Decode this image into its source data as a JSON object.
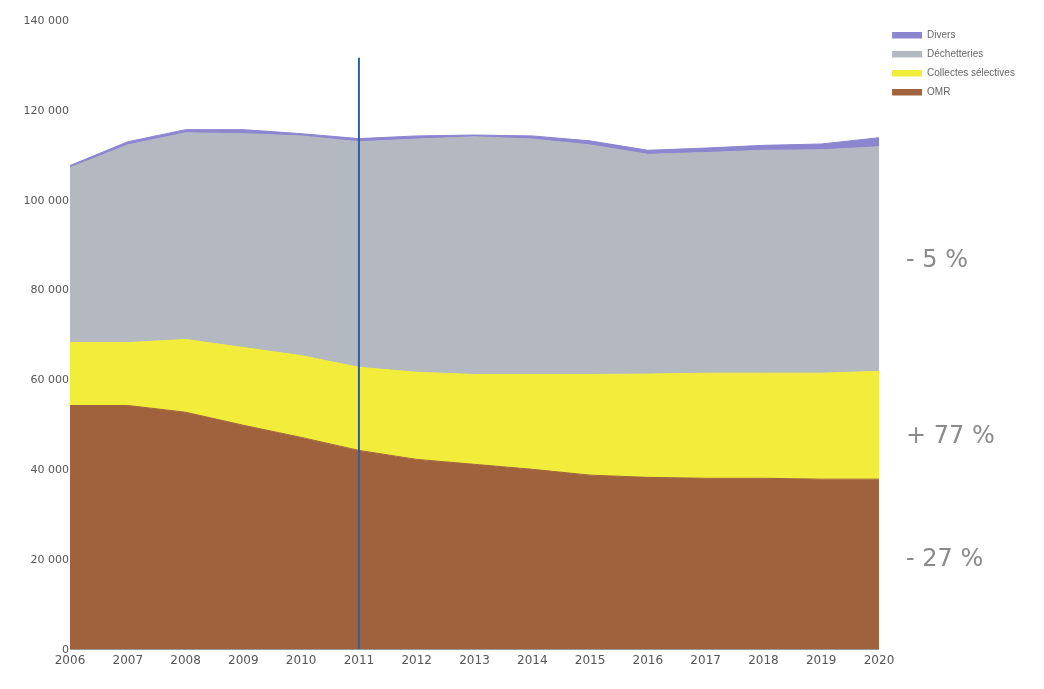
{
  "chart_data": {
    "type": "area",
    "stacked": true,
    "x": [
      2006,
      2007,
      2008,
      2009,
      2010,
      2011,
      2012,
      2013,
      2014,
      2015,
      2016,
      2017,
      2018,
      2019,
      2020
    ],
    "series": [
      {
        "name": "OMR",
        "color": "#a0623c",
        "values": [
          54200,
          54200,
          52700,
          49800,
          47100,
          44200,
          42200,
          41100,
          40000,
          38700,
          38200,
          38000,
          38000,
          37800,
          37800
        ]
      },
      {
        "name": "Collectes sélectives",
        "color": "#f2ec3a",
        "values": [
          14000,
          14000,
          16200,
          17300,
          18200,
          18500,
          19400,
          20000,
          21100,
          22400,
          23000,
          23400,
          23400,
          23600,
          24000
        ]
      },
      {
        "name": "Déchetteries",
        "color": "#b4b8c0",
        "values": [
          38900,
          44000,
          46000,
          47600,
          48900,
          50200,
          51900,
          52900,
          52400,
          51100,
          48900,
          49100,
          49600,
          49700,
          50000
        ]
      },
      {
        "name": "Divers",
        "color": "#8c86d0",
        "values": [
          500,
          700,
          700,
          900,
          500,
          700,
          700,
          400,
          700,
          900,
          900,
          1000,
          1100,
          1300,
          2000
        ]
      }
    ],
    "xlim": [
      2006,
      2020
    ],
    "xticks": [
      2006,
      2007,
      2008,
      2009,
      2010,
      2011,
      2012,
      2013,
      2014,
      2015,
      2016,
      2017,
      2018,
      2019,
      2020
    ],
    "ylim": [
      0,
      140000
    ],
    "yticks": [
      {
        "value": 0,
        "label": "0"
      },
      {
        "value": 20000,
        "label": "20 000"
      },
      {
        "value": 40000,
        "label": "40 000"
      },
      {
        "value": 60000,
        "label": "60 000"
      },
      {
        "value": 80000,
        "label": "80 000"
      },
      {
        "value": 100000,
        "label": "100 000"
      },
      {
        "value": 120000,
        "label": "120 000"
      },
      {
        "value": 140000,
        "label": "140 000"
      }
    ],
    "ref_lines": [
      {
        "axis": "x",
        "value": 2011,
        "color": "#2e5fa0"
      }
    ],
    "annotations": [
      "- 5 %",
      "+ 77 %",
      "- 27 %"
    ],
    "legend": "top right"
  }
}
